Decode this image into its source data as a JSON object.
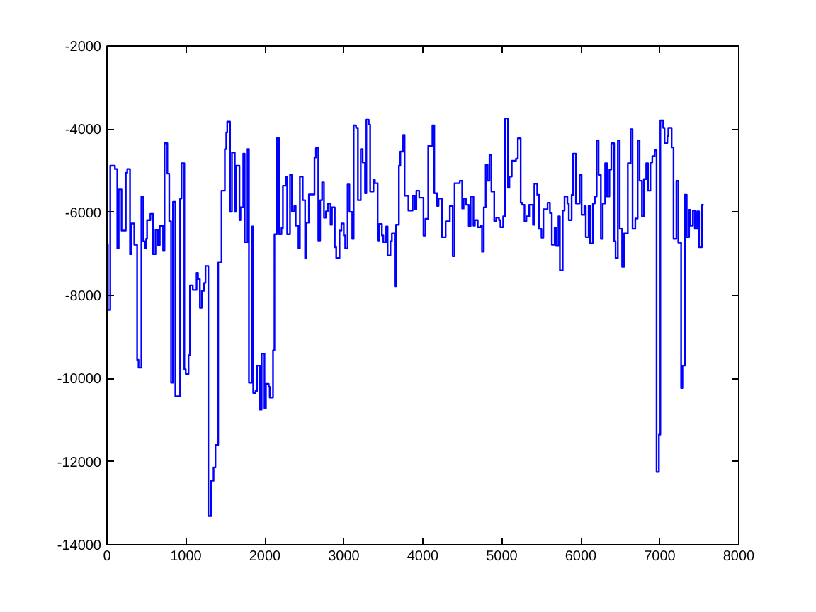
{
  "chart_data": {
    "type": "step",
    "color": "#0000ff",
    "xlim": [
      0,
      8000
    ],
    "ylim": [
      -14000,
      -2000
    ],
    "xticks": [
      0,
      1000,
      2000,
      3000,
      4000,
      5000,
      6000,
      7000,
      8000
    ],
    "yticks": [
      -14000,
      -12000,
      -10000,
      -8000,
      -6000,
      -4000,
      -2000
    ],
    "x": [
      0,
      12,
      42,
      101,
      131,
      149,
      185,
      239,
      257,
      292,
      310,
      346,
      382,
      400,
      436,
      460,
      478,
      496,
      508,
      550,
      585,
      615,
      645,
      669,
      711,
      729,
      765,
      789,
      812,
      836,
      866,
      926,
      944,
      980,
      998,
      1033,
      1051,
      1087,
      1135,
      1153,
      1177,
      1201,
      1230,
      1248,
      1284,
      1320,
      1350,
      1374,
      1409,
      1451,
      1493,
      1511,
      1523,
      1559,
      1583,
      1619,
      1636,
      1678,
      1691,
      1726,
      1744,
      1780,
      1798,
      1834,
      1852,
      1882,
      1900,
      1936,
      1959,
      1995,
      2013,
      2049,
      2061,
      2103,
      2121,
      2151,
      2180,
      2210,
      2228,
      2264,
      2282,
      2318,
      2342,
      2372,
      2390,
      2425,
      2443,
      2479,
      2509,
      2527,
      2557,
      2628,
      2646,
      2676,
      2700,
      2724,
      2748,
      2772,
      2796,
      2831,
      2849,
      2885,
      2903,
      2945,
      2969,
      2999,
      3017,
      3047,
      3070,
      3106,
      3124,
      3154,
      3178,
      3214,
      3238,
      3268,
      3285,
      3315,
      3333,
      3375,
      3393,
      3428,
      3446,
      3482,
      3500,
      3536,
      3554,
      3590,
      3608,
      3644,
      3661,
      3697,
      3715,
      3751,
      3769,
      3817,
      3871,
      3900,
      3918,
      3954,
      4008,
      4032,
      4068,
      4121,
      4145,
      4181,
      4199,
      4241,
      4289,
      4342,
      4378,
      4402,
      4468,
      4498,
      4516,
      4545,
      4581,
      4605,
      4641,
      4659,
      4695,
      4731,
      4749,
      4772,
      4796,
      4820,
      4844,
      4868,
      4904,
      4928,
      4964,
      4982,
      5017,
      5042,
      5078,
      5096,
      5126,
      5179,
      5203,
      5239,
      5257,
      5287,
      5311,
      5347,
      5394,
      5412,
      5448,
      5472,
      5502,
      5526,
      5579,
      5609,
      5633,
      5669,
      5687,
      5717,
      5735,
      5771,
      5794,
      5830,
      5848,
      5884,
      5902,
      5938,
      5986,
      6010,
      6045,
      6063,
      6099,
      6117,
      6153,
      6177,
      6201,
      6225,
      6254,
      6278,
      6308,
      6332,
      6362,
      6386,
      6422,
      6440,
      6469,
      6493,
      6523,
      6547,
      6595,
      6631,
      6655,
      6690,
      6720,
      6744,
      6774,
      6798,
      6828,
      6851,
      6881,
      6905,
      6935,
      6959,
      6989,
      7007,
      7043,
      7060,
      7096,
      7108,
      7150,
      7174,
      7210,
      7234,
      7270,
      7287,
      7317,
      7341,
      7371,
      7389,
      7419,
      7443,
      7473,
      7497,
      7532,
      7556
    ],
    "values": [
      -6780,
      -8350,
      -4880,
      -4960,
      -6870,
      -5450,
      -6440,
      -5050,
      -4960,
      -7010,
      -6270,
      -6780,
      -9550,
      -9740,
      -5620,
      -6700,
      -6870,
      -6640,
      -6190,
      -6040,
      -7010,
      -6420,
      -6790,
      -6330,
      -6930,
      -4340,
      -5070,
      -6220,
      -10100,
      -5750,
      -10430,
      -5670,
      -4820,
      -9780,
      -9890,
      -9440,
      -7760,
      -7870,
      -7460,
      -7610,
      -8300,
      -7890,
      -7700,
      -7290,
      -13310,
      -12460,
      -12140,
      -11600,
      -7210,
      -5480,
      -4480,
      -4080,
      -3820,
      -5990,
      -4560,
      -5990,
      -4880,
      -6190,
      -5880,
      -4590,
      -6720,
      -4480,
      -10100,
      -6340,
      -10350,
      -10300,
      -9690,
      -10750,
      -9400,
      -10720,
      -10130,
      -10200,
      -10460,
      -9320,
      -6530,
      -4220,
      -6530,
      -6380,
      -5360,
      -5140,
      -6530,
      -5100,
      -5980,
      -5850,
      -6320,
      -6870,
      -5140,
      -5710,
      -7100,
      -6250,
      -5570,
      -4680,
      -4460,
      -6680,
      -5710,
      -5280,
      -6130,
      -5980,
      -5790,
      -6300,
      -5880,
      -6840,
      -7100,
      -6440,
      -6270,
      -6560,
      -6870,
      -5330,
      -5990,
      -6640,
      -3910,
      -3970,
      -5710,
      -4480,
      -4800,
      -5540,
      -3770,
      -3890,
      -5500,
      -5220,
      -5300,
      -6680,
      -6280,
      -6560,
      -6720,
      -6340,
      -7040,
      -6700,
      -6510,
      -7780,
      -6300,
      -4880,
      -4540,
      -4140,
      -5600,
      -5960,
      -5600,
      -5930,
      -5480,
      -5650,
      -6560,
      -6160,
      -4400,
      -3910,
      -5540,
      -5850,
      -5670,
      -6600,
      -6220,
      -5850,
      -7060,
      -5300,
      -5240,
      -5910,
      -5670,
      -5820,
      -6330,
      -5620,
      -6320,
      -6190,
      -6360,
      -6320,
      -6950,
      -5880,
      -4860,
      -5240,
      -4620,
      -5500,
      -6220,
      -6130,
      -6190,
      -6360,
      -6100,
      -3740,
      -5410,
      -5140,
      -4760,
      -4710,
      -4220,
      -5770,
      -5820,
      -6220,
      -6100,
      -5820,
      -6300,
      -5310,
      -5580,
      -6400,
      -6610,
      -5930,
      -5770,
      -6020,
      -6780,
      -6370,
      -6810,
      -6100,
      -7400,
      -5960,
      -5620,
      -5790,
      -6190,
      -5580,
      -4590,
      -5790,
      -5100,
      -6060,
      -5850,
      -6600,
      -5850,
      -6750,
      -5790,
      -5620,
      -4270,
      -5100,
      -6640,
      -5790,
      -4820,
      -5620,
      -4970,
      -4340,
      -6700,
      -7100,
      -4270,
      -6400,
      -7310,
      -6510,
      -4820,
      -4000,
      -6400,
      -6150,
      -4270,
      -5240,
      -6100,
      -5200,
      -4820,
      -5480,
      -4800,
      -4650,
      -4510,
      -12250,
      -11350,
      -3790,
      -3970,
      -4330,
      -4170,
      -3970,
      -4440,
      -6640,
      -5240,
      -6730,
      -10230,
      -9690,
      -5580,
      -6600,
      -5940,
      -6320,
      -5960,
      -6400,
      -5980,
      -6840,
      -5820,
      -5820
    ]
  }
}
